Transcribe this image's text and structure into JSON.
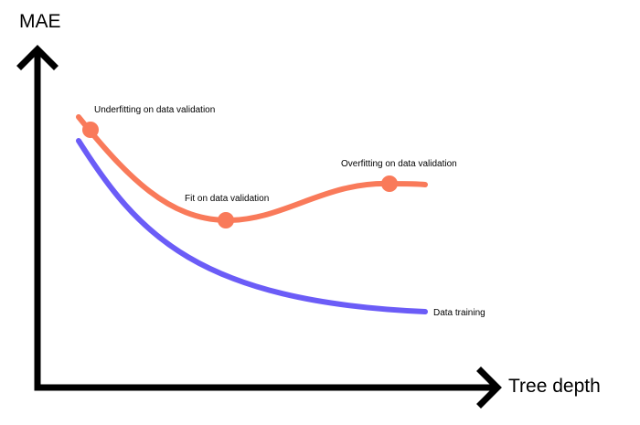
{
  "axes": {
    "y_label": "MAE",
    "x_label": "Tree depth"
  },
  "curves": {
    "validation": {
      "color": "#f97a5a",
      "label": ""
    },
    "training": {
      "color": "#6b5cf7",
      "label": "Data training"
    }
  },
  "annotations": {
    "underfitting": "Underfitting on data validation",
    "fit": "Fit on data validation",
    "overfitting": "Overfitting on data validation"
  },
  "colors": {
    "axis": "#000000",
    "background": "#ffffff"
  }
}
